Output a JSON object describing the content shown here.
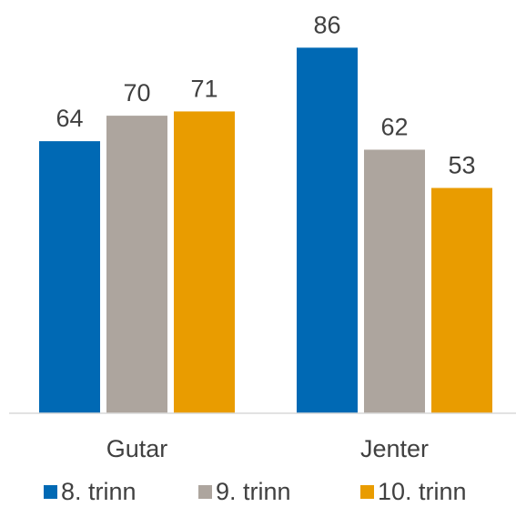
{
  "chart_data": {
    "type": "bar",
    "title": "",
    "xlabel": "",
    "ylabel": "",
    "categories": [
      "Gutar",
      "Jenter"
    ],
    "series": [
      {
        "name": "8. trinn",
        "values": [
          64,
          86
        ],
        "color": "#0069B4"
      },
      {
        "name": "9. trinn",
        "values": [
          70,
          62
        ],
        "color": "#ADA59E"
      },
      {
        "name": "10. trinn",
        "values": [
          71,
          53
        ],
        "color": "#E99C00"
      }
    ],
    "ylim": [
      0,
      100
    ],
    "grid": false,
    "data_labels": true,
    "legend": {
      "position": "bottom"
    }
  }
}
